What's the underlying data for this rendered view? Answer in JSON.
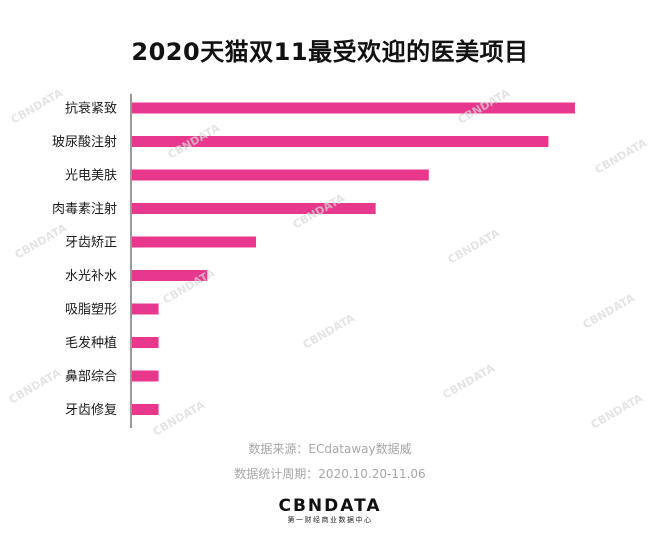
{
  "chart_data": {
    "type": "bar",
    "orientation": "horizontal",
    "title": "2020天猫双11最受欢迎的医美项目",
    "categories": [
      "抗衰紧致",
      "玻尿酸注射",
      "光电美肤",
      "肉毒素注射",
      "牙齿矫正",
      "水光补水",
      "吸脂塑形",
      "毛发种植",
      "鼻部综合",
      "牙齿修复"
    ],
    "values": [
      100,
      94,
      67,
      55,
      28,
      17,
      6,
      6,
      6,
      6
    ],
    "value_scale": "relative (no printed axis)",
    "bar_color": "#e8388e",
    "grid": false,
    "legend": "none"
  },
  "source_line1": "数据来源：ECdataway数据威",
  "source_line2": "数据统计周期：2020.10.20-11.06",
  "logo": {
    "name": "CBNDATA",
    "tagline": "第一财经商业数据中心"
  },
  "watermark_text": "CBNDATA"
}
